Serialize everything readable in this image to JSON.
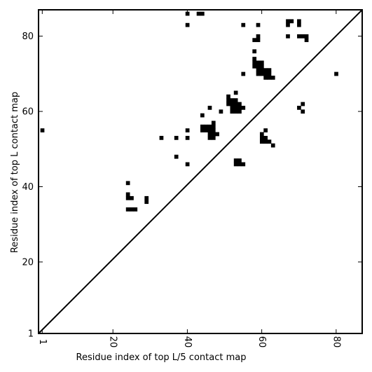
{
  "chart_data": {
    "type": "heatmap",
    "title": "",
    "xlabel": "Residue index of top L/5 contact map",
    "ylabel": "Residue index of top L contact map",
    "xlim": [
      0,
      87
    ],
    "ylim": [
      1,
      87
    ],
    "x_ticks": [
      1,
      20,
      40,
      60,
      80
    ],
    "y_ticks": [
      1,
      20,
      40,
      60,
      80
    ],
    "diagonal": true,
    "grid": false,
    "legend": "none",
    "cell_color": "#000000",
    "background_color": "#ffffff",
    "contacts": [
      [
        1,
        55
      ],
      [
        24,
        41
      ],
      [
        24,
        38
      ],
      [
        24,
        37
      ],
      [
        25,
        37
      ],
      [
        29,
        37
      ],
      [
        29,
        36
      ],
      [
        24,
        34
      ],
      [
        25,
        34
      ],
      [
        26,
        34
      ],
      [
        33,
        53
      ],
      [
        37,
        53
      ],
      [
        37,
        48
      ],
      [
        40,
        86
      ],
      [
        40,
        83
      ],
      [
        40,
        55
      ],
      [
        40,
        53
      ],
      [
        40,
        46
      ],
      [
        43,
        86
      ],
      [
        44,
        86
      ],
      [
        44,
        59
      ],
      [
        44,
        56
      ],
      [
        45,
        56
      ],
      [
        46,
        56
      ],
      [
        47,
        56
      ],
      [
        47,
        57
      ],
      [
        44,
        55
      ],
      [
        45,
        55
      ],
      [
        46,
        55
      ],
      [
        47,
        55
      ],
      [
        46,
        54
      ],
      [
        47,
        54
      ],
      [
        48,
        54
      ],
      [
        46,
        53
      ],
      [
        47,
        53
      ],
      [
        46,
        61
      ],
      [
        49,
        60
      ],
      [
        51,
        64
      ],
      [
        51,
        63
      ],
      [
        52,
        63
      ],
      [
        53,
        63
      ],
      [
        51,
        62
      ],
      [
        52,
        62
      ],
      [
        53,
        62
      ],
      [
        54,
        62
      ],
      [
        52,
        61
      ],
      [
        53,
        61
      ],
      [
        54,
        61
      ],
      [
        55,
        61
      ],
      [
        52,
        60
      ],
      [
        53,
        60
      ],
      [
        54,
        60
      ],
      [
        53,
        65
      ],
      [
        55,
        70
      ],
      [
        55,
        83
      ],
      [
        53,
        47
      ],
      [
        54,
        47
      ],
      [
        53,
        46
      ],
      [
        54,
        46
      ],
      [
        55,
        46
      ],
      [
        58,
        76
      ],
      [
        58,
        79
      ],
      [
        59,
        79
      ],
      [
        59,
        80
      ],
      [
        59,
        83
      ],
      [
        58,
        74
      ],
      [
        58,
        73
      ],
      [
        59,
        73
      ],
      [
        60,
        73
      ],
      [
        58,
        72
      ],
      [
        59,
        72
      ],
      [
        60,
        72
      ],
      [
        59,
        71
      ],
      [
        60,
        71
      ],
      [
        61,
        71
      ],
      [
        62,
        71
      ],
      [
        59,
        70
      ],
      [
        60,
        70
      ],
      [
        61,
        70
      ],
      [
        62,
        70
      ],
      [
        61,
        69
      ],
      [
        62,
        69
      ],
      [
        63,
        69
      ],
      [
        60,
        54
      ],
      [
        60,
        53
      ],
      [
        61,
        53
      ],
      [
        60,
        52
      ],
      [
        61,
        52
      ],
      [
        62,
        52
      ],
      [
        61,
        55
      ],
      [
        63,
        51
      ],
      [
        67,
        84
      ],
      [
        68,
        84
      ],
      [
        67,
        83
      ],
      [
        67,
        80
      ],
      [
        70,
        84
      ],
      [
        70,
        83
      ],
      [
        70,
        80
      ],
      [
        71,
        80
      ],
      [
        72,
        80
      ],
      [
        72,
        79
      ],
      [
        70,
        61
      ],
      [
        71,
        62
      ],
      [
        71,
        60
      ],
      [
        80,
        70
      ]
    ]
  }
}
